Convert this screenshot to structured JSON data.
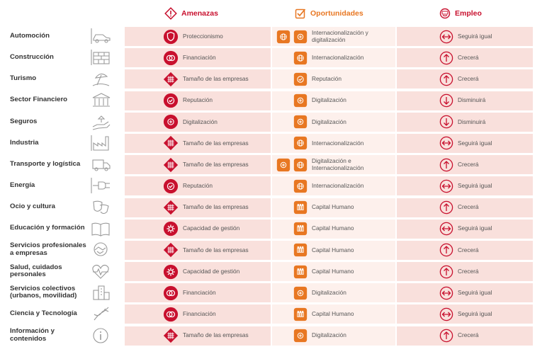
{
  "headers": {
    "amenazas": "Amenazas",
    "oportunidades": "Oportunidades",
    "empleo": "Empleo"
  },
  "colors": {
    "threat": "#c8102e",
    "opportunity": "#e87722",
    "band_dark": "#f9e0dc",
    "band_light": "#fdf0ec",
    "sector_icon": "#9a9a9a"
  },
  "rows": [
    {
      "sector": "Automoción",
      "sector_icon": "car-icon",
      "threat": "Proteccionismo",
      "threat_icon": "shield-icon",
      "opp": "Internacionalización y digitalización",
      "opp_icons": [
        "globe-icon",
        "digital-icon"
      ],
      "emp": "Seguirá igual",
      "emp_icon": "arrows-horizontal-icon"
    },
    {
      "sector": "Construcción",
      "sector_icon": "bricks-icon",
      "threat": "Financiación",
      "threat_icon": "coins-icon",
      "opp": "Internacionalización",
      "opp_icons": [
        "globe-icon"
      ],
      "emp": "Crecerá",
      "emp_icon": "arrow-up-icon"
    },
    {
      "sector": "Turismo",
      "sector_icon": "umbrella-icon",
      "threat": "Tamaño de las empresas",
      "threat_icon": "grid-icon",
      "opp": "Reputación",
      "opp_icons": [
        "check-icon"
      ],
      "emp": "Crecerá",
      "emp_icon": "arrow-up-icon"
    },
    {
      "sector": "Sector Financiero",
      "sector_icon": "bank-icon",
      "threat": "Reputación",
      "threat_icon": "check-icon",
      "opp": "Digitalización",
      "opp_icons": [
        "digital-icon"
      ],
      "emp": "Disminuirá",
      "emp_icon": "arrow-down-icon"
    },
    {
      "sector": "Seguros",
      "sector_icon": "hand-icon",
      "threat": "Digitalización",
      "threat_icon": "digital-icon",
      "opp": "Digitalización",
      "opp_icons": [
        "digital-icon"
      ],
      "emp": "Disminuirá",
      "emp_icon": "arrow-down-icon"
    },
    {
      "sector": "Industria",
      "sector_icon": "factory-icon",
      "threat": "Tamaño de las empresas",
      "threat_icon": "grid-icon",
      "opp": "Internacionalización",
      "opp_icons": [
        "globe-icon"
      ],
      "emp": "Seguirá igual",
      "emp_icon": "arrows-horizontal-icon"
    },
    {
      "sector": "Transporte y logística",
      "sector_icon": "truck-icon",
      "threat": "Tamaño de las empresas",
      "threat_icon": "grid-icon",
      "opp": "Digitalización e Internacionalización",
      "opp_icons": [
        "digital-icon",
        "globe-icon"
      ],
      "emp": "Crecerá",
      "emp_icon": "arrow-up-icon"
    },
    {
      "sector": "Energía",
      "sector_icon": "plug-icon",
      "threat": "Reputación",
      "threat_icon": "check-icon",
      "opp": "Internacionalización",
      "opp_icons": [
        "globe-icon"
      ],
      "emp": "Seguirá igual",
      "emp_icon": "arrows-horizontal-icon"
    },
    {
      "sector": "Ocio y cultura",
      "sector_icon": "masks-icon",
      "threat": "Tamaño de las empresas",
      "threat_icon": "grid-icon",
      "opp": "Capital Humano",
      "opp_icons": [
        "people-icon"
      ],
      "emp": "Crecerá",
      "emp_icon": "arrow-up-icon"
    },
    {
      "sector": "Educación y formación",
      "sector_icon": "book-icon",
      "threat": "Capacidad de gestión",
      "threat_icon": "gear-icon",
      "opp": "Capital Humano",
      "opp_icons": [
        "people-icon"
      ],
      "emp": "Seguirá igual",
      "emp_icon": "arrows-horizontal-icon"
    },
    {
      "sector": "Servicios profesionales a empresas",
      "sector_icon": "handshake-icon",
      "threat": "Tamaño de las empresas",
      "threat_icon": "grid-icon",
      "opp": "Capital Humano",
      "opp_icons": [
        "people-icon"
      ],
      "emp": "Crecerá",
      "emp_icon": "arrow-up-icon"
    },
    {
      "sector": "Salud, cuidados personales",
      "sector_icon": "heart-icon",
      "threat": "Capacidad de gestión",
      "threat_icon": "gear-icon",
      "opp": "Capital Humano",
      "opp_icons": [
        "people-icon"
      ],
      "emp": "Crecerá",
      "emp_icon": "arrow-up-icon"
    },
    {
      "sector": "Servicios colectivos (urbanos, movilidad)",
      "sector_icon": "city-icon",
      "threat": "Financiación",
      "threat_icon": "coins-icon",
      "opp": "Digitalización",
      "opp_icons": [
        "digital-icon"
      ],
      "emp": "Seguirá igual",
      "emp_icon": "arrows-horizontal-icon"
    },
    {
      "sector": "Ciencia y Tecnología",
      "sector_icon": "dna-icon",
      "threat": "Financiación",
      "threat_icon": "coins-icon",
      "opp": "Capital Humano",
      "opp_icons": [
        "people-icon"
      ],
      "emp": "Seguirá igual",
      "emp_icon": "arrows-horizontal-icon"
    },
    {
      "sector": "Información y contenidos",
      "sector_icon": "info-icon",
      "threat": "Tamaño de las empresas",
      "threat_icon": "grid-icon",
      "opp": "Digitalización",
      "opp_icons": [
        "digital-icon"
      ],
      "emp": "Crecerá",
      "emp_icon": "arrow-up-icon"
    }
  ]
}
